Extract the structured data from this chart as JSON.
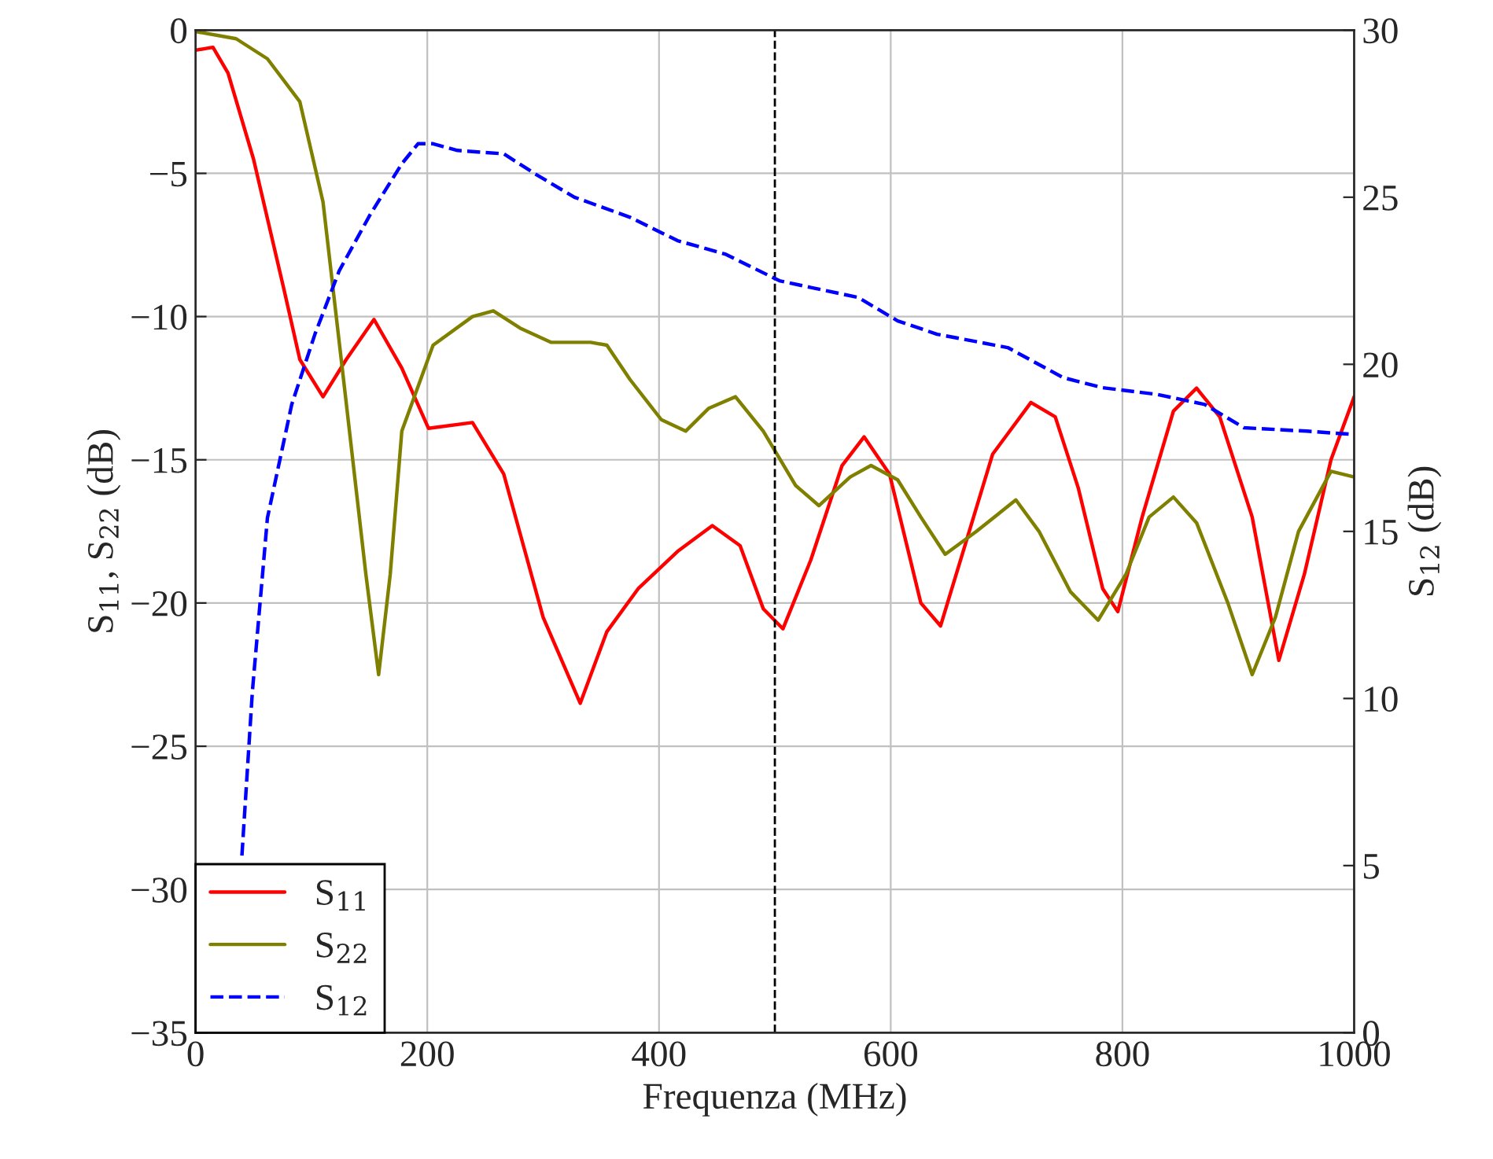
{
  "chart_data": {
    "type": "line",
    "xlabel": "Frequenza (MHz)",
    "ylabel": "S$_{11}$, S$_{22}$ (dB)",
    "y2label": "S$_{12}$ (dB)",
    "xlim": [
      0,
      1000
    ],
    "xticks": [
      0,
      200,
      400,
      600,
      800,
      1000
    ],
    "ylim": [
      -35,
      0
    ],
    "yticks": [
      -35,
      -30,
      -25,
      -20,
      -15,
      -10,
      -5,
      0
    ],
    "y2lim": [
      0,
      30
    ],
    "y2ticks": [
      0,
      5,
      10,
      15,
      20,
      25,
      30
    ],
    "grid": true,
    "legend": "bottom left",
    "marker": "none",
    "ref_lines": [
      {
        "axis": "x",
        "value": 500,
        "color": "#000000",
        "line_style": "dashed"
      }
    ],
    "series": [
      {
        "name": "S$_{11}$",
        "color": "#ff0000",
        "line_style": "solid",
        "x": [
          0,
          15,
          28,
          50,
          76,
          90,
          110,
          130,
          154,
          178,
          201,
          239,
          266,
          300,
          332,
          355,
          382,
          416,
          446,
          470,
          490,
          507,
          531,
          558,
          577,
          599,
          626,
          643,
          664,
          688,
          721,
          742,
          762,
          783,
          796,
          817,
          844,
          864,
          884,
          912,
          935,
          957,
          980,
          1000
        ],
        "values": [
          -0.7,
          -0.6,
          -1.5,
          -4.5,
          -9,
          -11.5,
          -12.8,
          -11.5,
          -10.1,
          -11.8,
          -13.9,
          -13.7,
          -15.5,
          -20.5,
          -23.5,
          -21,
          -19.5,
          -18.2,
          -17.3,
          -18,
          -20.2,
          -20.9,
          -18.5,
          -15.2,
          -14.2,
          -15.5,
          -20,
          -20.8,
          -18,
          -14.8,
          -13,
          -13.5,
          -16,
          -19.5,
          -20.3,
          -17,
          -13.3,
          -12.5,
          -13.5,
          -17,
          -22,
          -19,
          -15,
          -12.8
        ]
      },
      {
        "name": "S$_{22}$",
        "color": "#808000",
        "line_style": "solid",
        "x": [
          0,
          35,
          62,
          90,
          110,
          130,
          147,
          158,
          168,
          178,
          205,
          239,
          257,
          280,
          307,
          341,
          355,
          375,
          402,
          423,
          443,
          466,
          490,
          518,
          538,
          565,
          583,
          606,
          626,
          647,
          674,
          708,
          728,
          755,
          779,
          803,
          823,
          844,
          864,
          891,
          912,
          932,
          952,
          980,
          1000
        ],
        "values": [
          -0.05,
          -0.3,
          -1,
          -2.5,
          -6,
          -13,
          -19,
          -22.5,
          -19,
          -14,
          -11,
          -10,
          -9.8,
          -10.4,
          -10.9,
          -10.9,
          -11,
          -12.2,
          -13.6,
          -14,
          -13.2,
          -12.8,
          -14,
          -15.9,
          -16.6,
          -15.6,
          -15.2,
          -15.7,
          -17,
          -18.3,
          -17.5,
          -16.4,
          -17.5,
          -19.6,
          -20.6,
          -19,
          -17,
          -16.3,
          -17.2,
          -20,
          -22.5,
          -20.5,
          -17.5,
          -15.4,
          -15.6
        ]
      },
      {
        "name": "S$_{12}$",
        "color": "#0000ff",
        "line_style": "dashed",
        "axis": "y2",
        "x": [
          40,
          49,
          62,
          83,
          103,
          124,
          151,
          178,
          192,
          205,
          226,
          266,
          293,
          327,
          375,
          416,
          457,
          504,
          531,
          572,
          606,
          640,
          701,
          749,
          783,
          830,
          871,
          905,
          959,
          1000
        ],
        "values": [
          5.3,
          10.2,
          15.4,
          18.8,
          20.9,
          22.8,
          24.5,
          26,
          26.6,
          26.6,
          26.4,
          26.3,
          25.7,
          25,
          24.4,
          23.7,
          23.3,
          22.5,
          22.3,
          22,
          21.3,
          20.9,
          20.5,
          19.6,
          19.3,
          19.1,
          18.8,
          18.1,
          18,
          17.9
        ]
      }
    ]
  }
}
